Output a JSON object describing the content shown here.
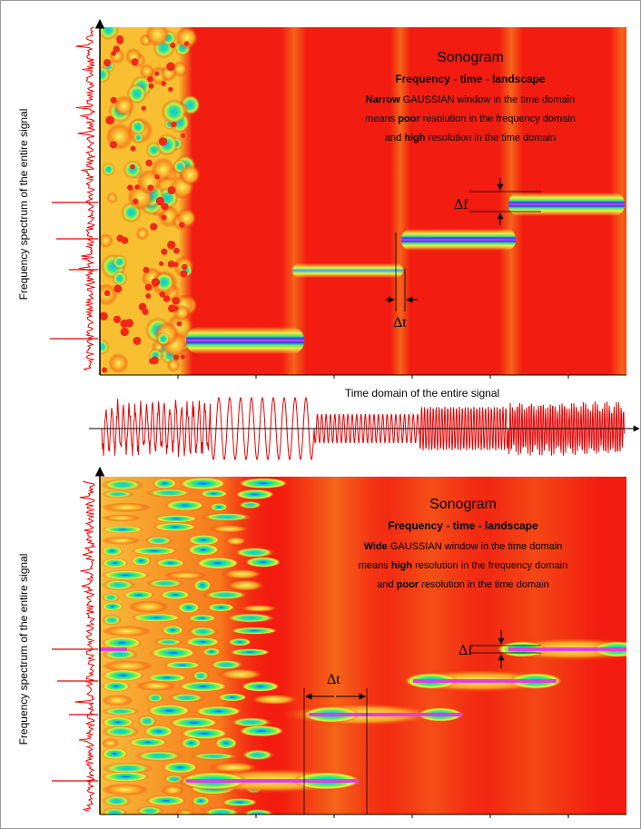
{
  "top_panel": {
    "title": "Sonogram",
    "subtitle": "Frequency - time - landscape",
    "line1_bold": "Narrow",
    "line1_rest": " GAUSSIAN window in the time domain",
    "line2_pre": "means ",
    "line2_bold": "poor",
    "line2_rest": " resolution in the frequency domain",
    "line3_pre": "and ",
    "line3_bold": "high",
    "line3_rest": " resolution in the time domain",
    "delta_f": "Δf",
    "delta_t": "Δt",
    "y_axis_label": "Frequency spectrum of the entire signal"
  },
  "time_panel": {
    "label": "Time domain of the entire signal"
  },
  "bottom_panel": {
    "title": "Sonogram",
    "subtitle": "Frequency - time - landscape",
    "line1_bold": "Wide",
    "line1_rest": " GAUSSIAN window in the time domain",
    "line2_pre": "means ",
    "line2_bold": "high",
    "line2_rest": " resolution in the frequency domain",
    "line3_pre": "and ",
    "line3_bold": "poor",
    "line3_rest": " resolution in the time domain",
    "delta_f": "Δf",
    "delta_t": "Δt",
    "y_axis_label": "Frequency spectrum of the entire signal"
  },
  "colors": {
    "background_red": "#f21c10",
    "signal_red": "#e80000",
    "line_magenta": "#e040e0",
    "halo_blue": "#3050ff",
    "halo_green": "#30e070",
    "halo_yellow": "#f0e030"
  }
}
